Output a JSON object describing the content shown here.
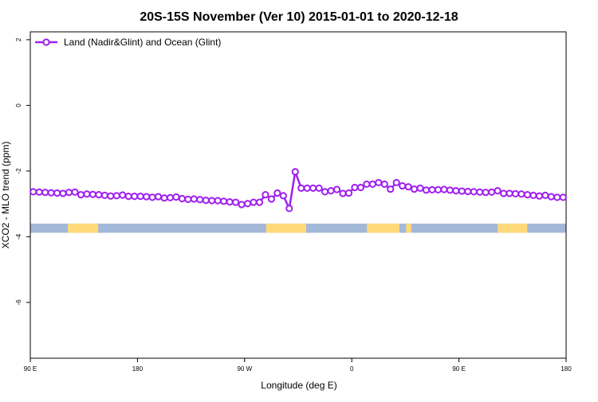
{
  "chart_data": {
    "type": "line",
    "title": "20S-15S November (Ver 10)   2015-01-01 to 2020-12-18",
    "xlabel": "Longitude (deg E)",
    "ylabel": "XCO2 - MLO trend (ppm)",
    "xlim": [
      90,
      540
    ],
    "ylim": [
      -7.7,
      2.24
    ],
    "xticks": [
      {
        "value": 90,
        "label": "90 E"
      },
      180,
      {
        "value": 270,
        "label": "90 W"
      },
      {
        "value": 360,
        "label": "0"
      },
      {
        "value": 450,
        "label": "90 E"
      },
      {
        "value": 540,
        "label": "180"
      }
    ],
    "yticks": [
      2,
      0,
      -2,
      -4,
      -6
    ],
    "legend": "top-left",
    "x": [
      92.5,
      97.5,
      102.5,
      107.5,
      112.5,
      117.5,
      122.5,
      127.5,
      132.5,
      137.5,
      142.5,
      147.5,
      152.5,
      157.5,
      162.5,
      167.5,
      172.5,
      177.5,
      182.5,
      187.5,
      192.5,
      197.5,
      202.5,
      207.5,
      212.5,
      217.5,
      222.5,
      227.5,
      232.5,
      237.5,
      242.5,
      247.5,
      252.5,
      257.5,
      262.5,
      267.5,
      272.5,
      277.5,
      282.5,
      287.5,
      292.5,
      297.5,
      302.5,
      307.5,
      312.5,
      317.5,
      322.5,
      327.5,
      332.5,
      337.5,
      342.5,
      347.5,
      352.5,
      357.5,
      362.5,
      367.5,
      372.5,
      377.5,
      382.5,
      387.5,
      392.5,
      397.5,
      402.5,
      407.5,
      412.5,
      417.5,
      422.5,
      427.5,
      432.5,
      437.5,
      442.5,
      447.5,
      452.5,
      457.5,
      462.5,
      467.5,
      472.5,
      477.5,
      482.5,
      487.5,
      492.5,
      497.5,
      502.5,
      507.5,
      512.5,
      517.5,
      522.5,
      527.5,
      532.5,
      537.5
    ],
    "series": [
      {
        "name": "Land (Nadir&Glint) and Ocean (Glint)",
        "color": "#a020f0",
        "values": [
          -2.63,
          -2.64,
          -2.65,
          -2.66,
          -2.67,
          -2.68,
          -2.65,
          -2.64,
          -2.72,
          -2.7,
          -2.71,
          -2.72,
          -2.74,
          -2.76,
          -2.75,
          -2.73,
          -2.77,
          -2.77,
          -2.77,
          -2.78,
          -2.8,
          -2.78,
          -2.82,
          -2.81,
          -2.79,
          -2.84,
          -2.86,
          -2.85,
          -2.87,
          -2.89,
          -2.9,
          -2.9,
          -2.92,
          -2.94,
          -2.95,
          -3.02,
          -2.99,
          -2.95,
          -2.95,
          -2.72,
          -2.85,
          -2.67,
          -2.75,
          -3.14,
          -2.02,
          -2.52,
          -2.52,
          -2.52,
          -2.52,
          -2.63,
          -2.6,
          -2.56,
          -2.68,
          -2.67,
          -2.5,
          -2.5,
          -2.4,
          -2.4,
          -2.35,
          -2.4,
          -2.55,
          -2.35,
          -2.45,
          -2.48,
          -2.55,
          -2.52,
          -2.58,
          -2.57,
          -2.57,
          -2.56,
          -2.58,
          -2.6,
          -2.61,
          -2.62,
          -2.63,
          -2.64,
          -2.65,
          -2.64,
          -2.6,
          -2.68,
          -2.68,
          -2.69,
          -2.7,
          -2.72,
          -2.74,
          -2.76,
          -2.74,
          -2.78,
          -2.8,
          -2.8
        ]
      }
    ],
    "surface_strip": {
      "ylim": [
        -3.88,
        -3.6
      ],
      "ocean_color": "#a3b8d8",
      "land_color": "#ffd97a",
      "land_ranges": [
        [
          121.5,
          147
        ],
        [
          288,
          321.7
        ],
        [
          372.7,
          400
        ],
        [
          405.6,
          410
        ],
        [
          482.6,
          507.4
        ]
      ]
    }
  }
}
